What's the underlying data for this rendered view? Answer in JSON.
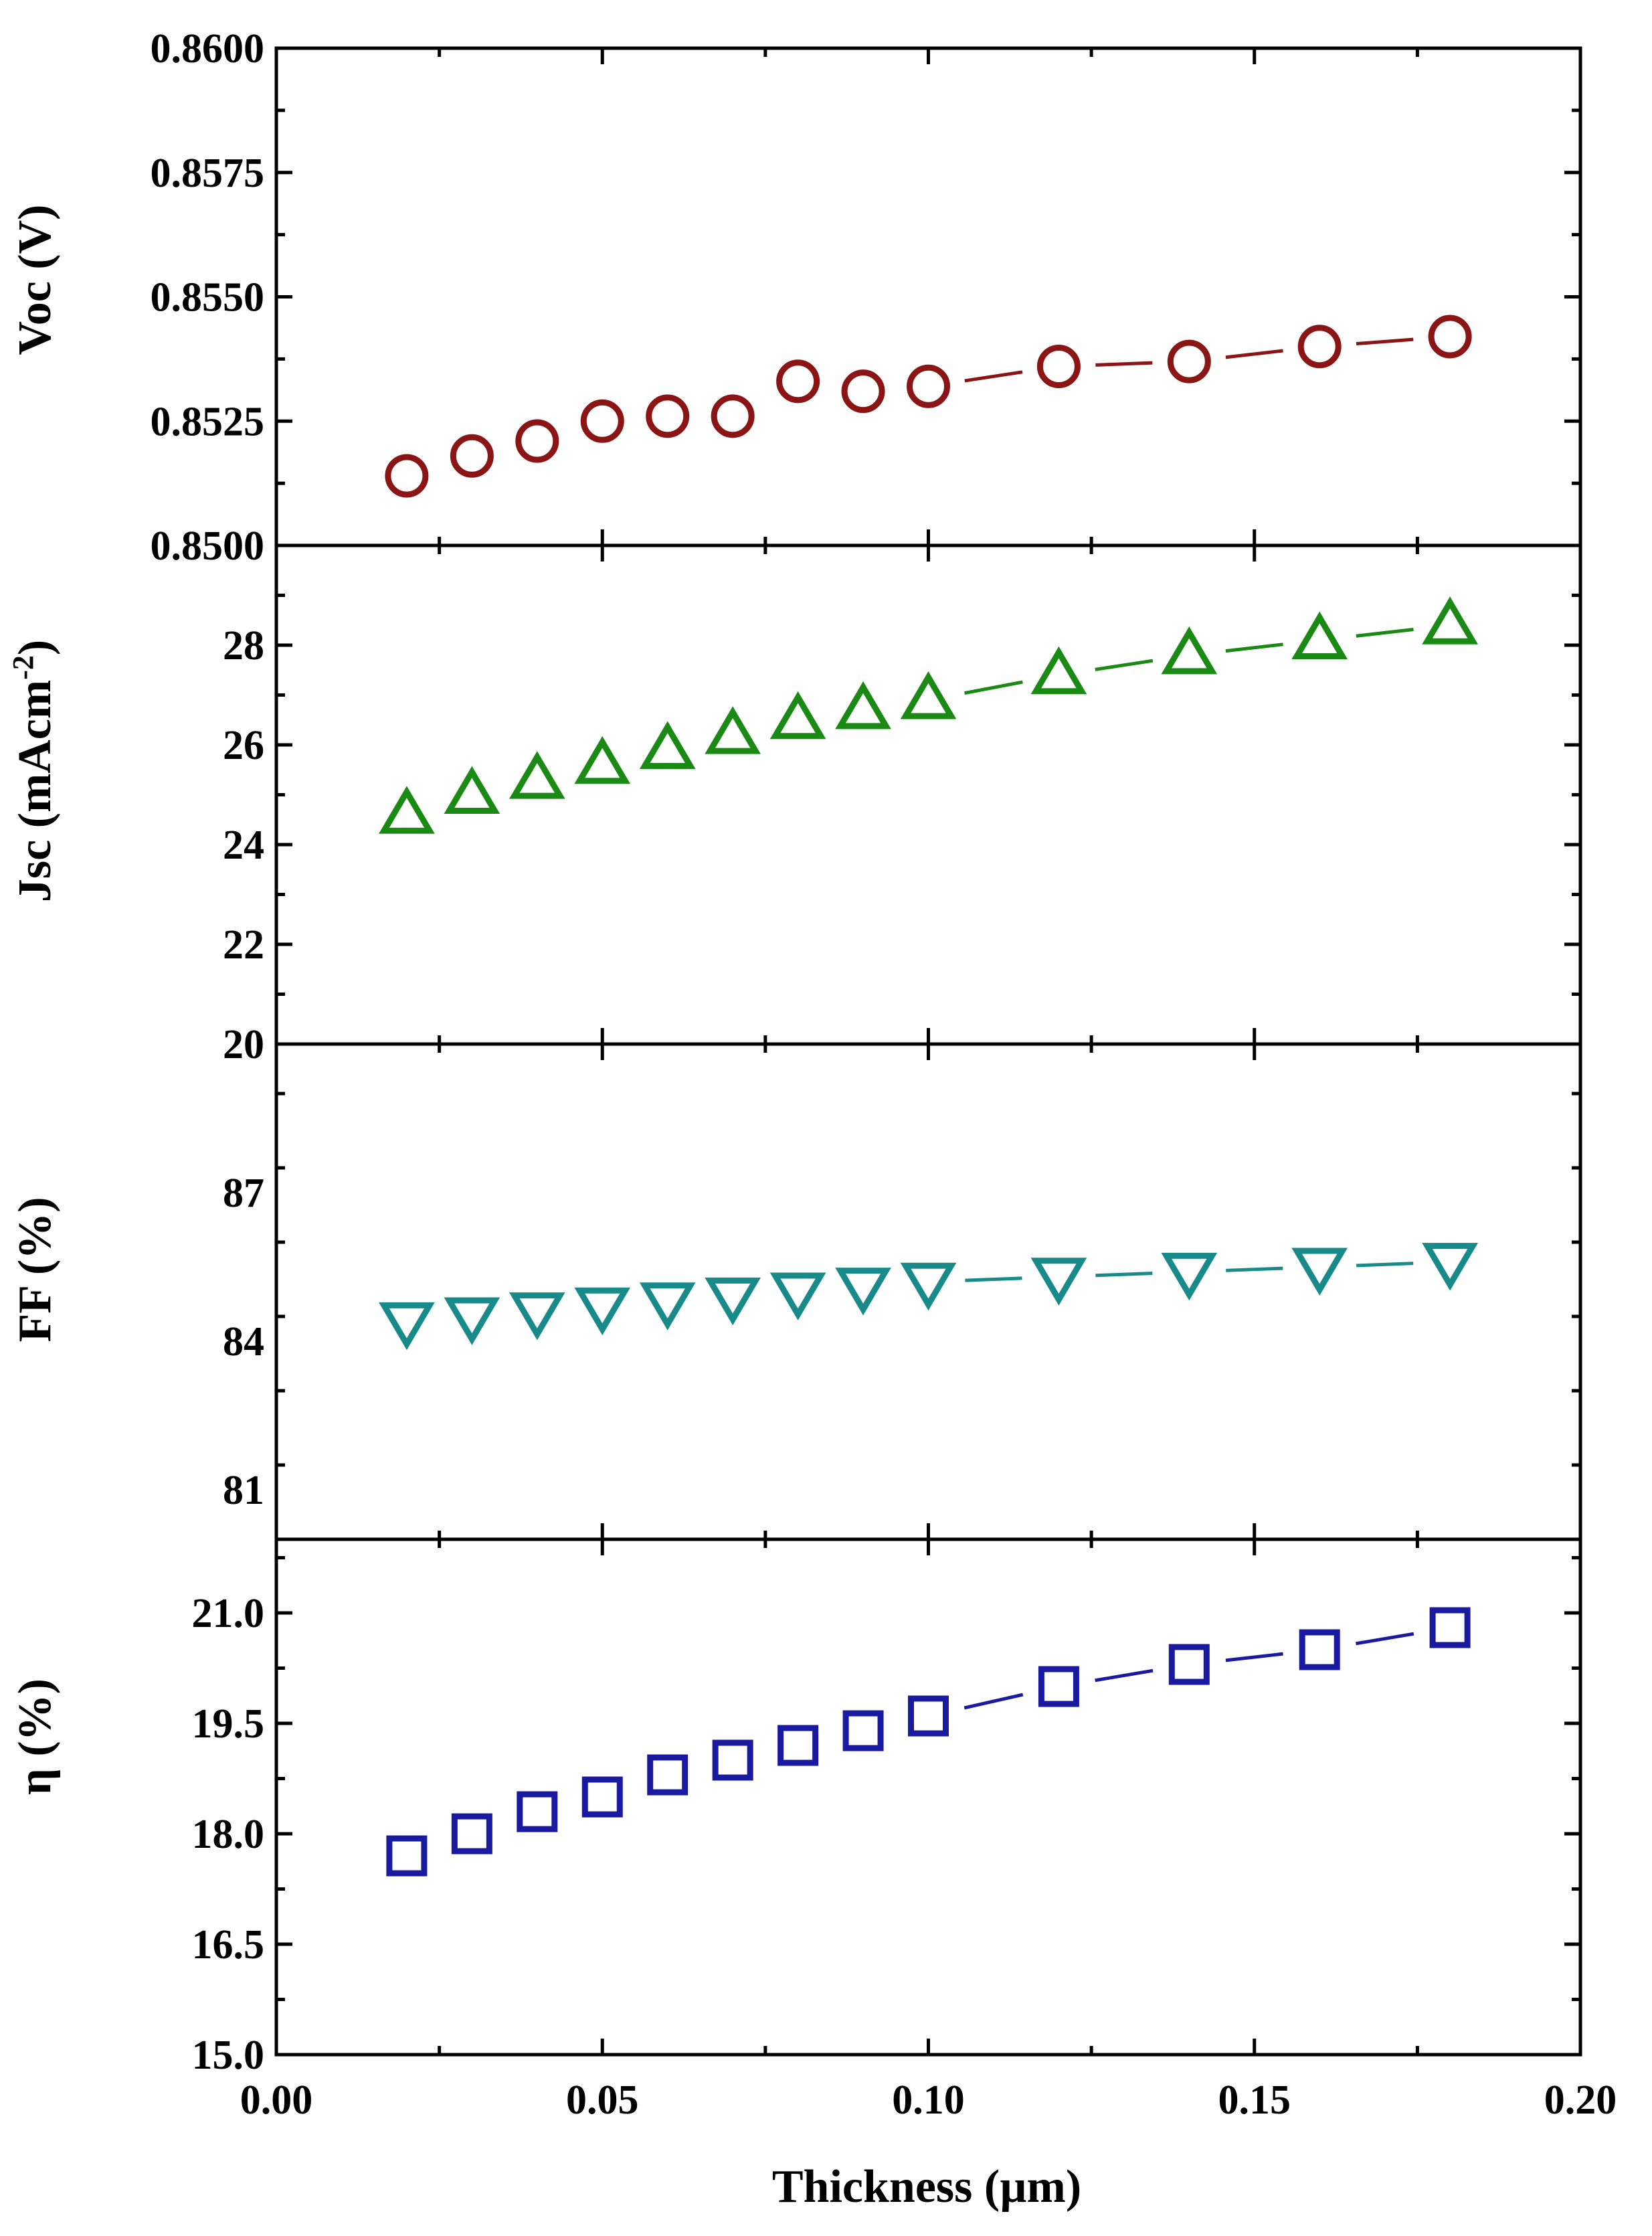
{
  "chart_data": {
    "type": "scatter",
    "xlabel": "Thickness (µm)",
    "xlim": [
      0.0,
      0.2
    ],
    "x_ticks": [
      "0.00",
      "0.05",
      "0.10",
      "0.15",
      "0.20"
    ],
    "x": [
      0.02,
      0.03,
      0.04,
      0.05,
      0.06,
      0.07,
      0.08,
      0.09,
      0.1,
      0.12,
      0.14,
      0.16,
      0.18
    ],
    "panels": [
      {
        "key": "voc",
        "ylabel": "Voc (V)",
        "ylim": [
          0.85,
          0.86
        ],
        "y_ticks": [
          "0.8600",
          "0.8575",
          "0.8550",
          "0.8525",
          "0.8500"
        ],
        "marker": "circle",
        "color": "#8b1414",
        "values": [
          0.8514,
          0.8518,
          0.8521,
          0.8525,
          0.8526,
          0.8526,
          0.8533,
          0.8531,
          0.8532,
          0.8536,
          0.8537,
          0.854,
          0.8542
        ]
      },
      {
        "key": "jsc",
        "ylabel": "Jsc (mAcm-2)",
        "ylabel_main": "Jsc (mAcm",
        "ylabel_sup": "-2",
        "ylabel_close": ")",
        "ylim": [
          20,
          30
        ],
        "y_ticks": [
          "28",
          "26",
          "24",
          "22",
          "20"
        ],
        "marker": "triangle-up",
        "color": "#1a8a14",
        "values": [
          24.6,
          25.0,
          25.3,
          25.6,
          25.9,
          26.2,
          26.5,
          26.7,
          26.9,
          27.4,
          27.8,
          28.1,
          28.4
        ]
      },
      {
        "key": "ff",
        "ylabel": "FF (%)",
        "ylim": [
          80,
          90
        ],
        "y_ticks": [
          "87",
          "84",
          "81"
        ],
        "marker": "triangle-down",
        "color": "#188a8a",
        "values": [
          84.4,
          84.5,
          84.6,
          84.7,
          84.8,
          84.9,
          85.0,
          85.1,
          85.2,
          85.3,
          85.4,
          85.5,
          85.6
        ]
      },
      {
        "key": "eta",
        "ylabel": "η (%)",
        "ylim": [
          15,
          22
        ],
        "y_ticks": [
          "21.0",
          "19.5",
          "18.0",
          "16.5",
          "15.0"
        ],
        "marker": "square",
        "color": "#1a1aa0",
        "values": [
          17.7,
          18.0,
          18.3,
          18.5,
          18.8,
          19.0,
          19.2,
          19.4,
          19.6,
          20.0,
          20.3,
          20.5,
          20.8
        ]
      }
    ]
  }
}
